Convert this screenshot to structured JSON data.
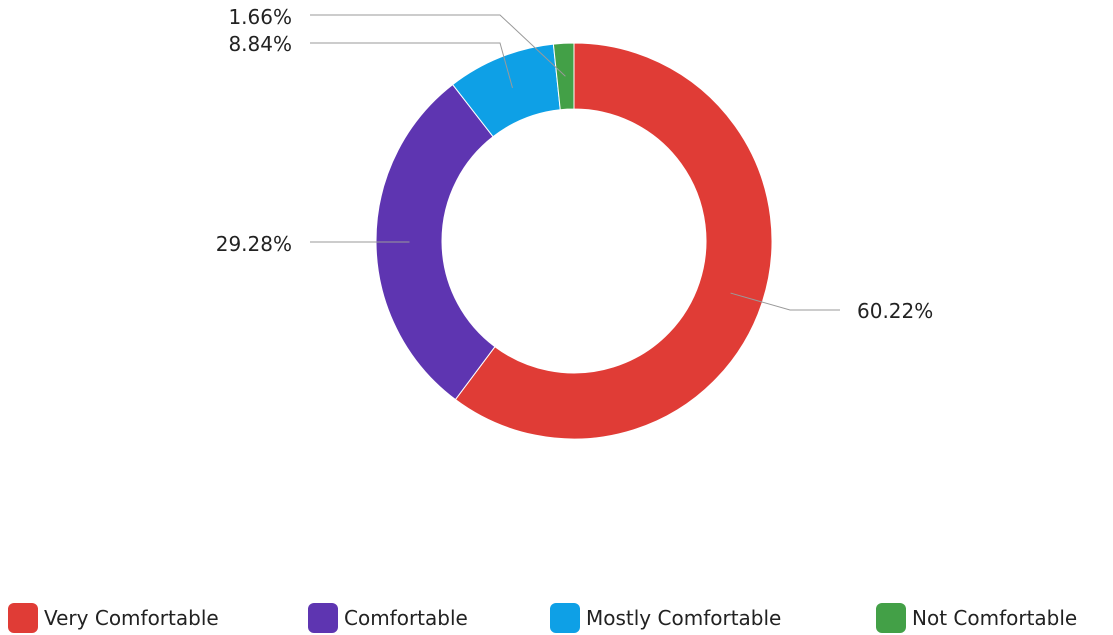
{
  "chart_data": {
    "type": "pie",
    "donut": true,
    "categories": [
      "Very Comfortable",
      "Comfortable",
      "Mostly Comfortable",
      "Not Comfortable"
    ],
    "values": [
      60.22,
      29.28,
      8.84,
      1.66
    ],
    "data_labels": [
      "60.22%",
      "29.28%",
      "8.84%",
      "1.66%"
    ],
    "colors": [
      "#E03C36",
      "#5E35B1",
      "#0EA0E6",
      "#43A047"
    ],
    "legend": {
      "position": "bottom",
      "entries": [
        "Very Comfortable",
        "Comfortable",
        "Mostly Comfortable",
        "Not Comfortable"
      ]
    }
  }
}
